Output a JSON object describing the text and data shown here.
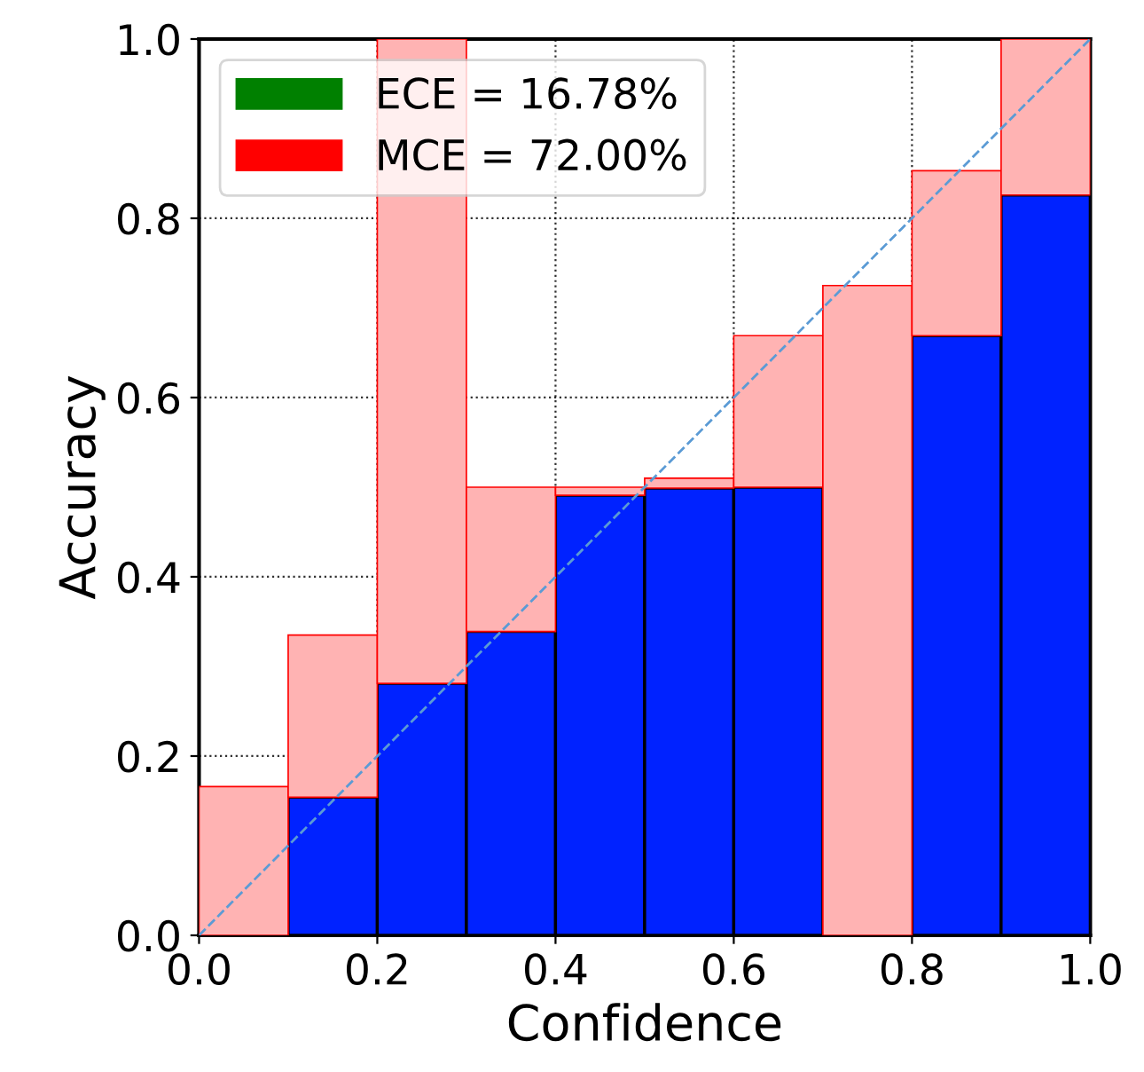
{
  "chart_data": {
    "type": "bar",
    "xlabel": "Confidence",
    "ylabel": "Accuracy",
    "x": [
      0.05,
      0.15,
      0.25,
      0.35,
      0.45,
      0.55,
      0.65,
      0.75,
      0.85,
      0.95
    ],
    "stacked": true,
    "series": [
      {
        "name": "ECE = 16.78%",
        "color": "#008000",
        "values": [
          null,
          null,
          null,
          null,
          null,
          null,
          null,
          null,
          null,
          null
        ]
      },
      {
        "name": "MCE = 72.00%",
        "color": "#ff0000",
        "values": [
          null,
          null,
          null,
          null,
          null,
          null,
          null,
          null,
          null,
          null
        ]
      },
      {
        "color": "#0022ff",
        "values": [
          null,
          0.154,
          0.281,
          0.339,
          0.491,
          0.499,
          0.5,
          null,
          0.669,
          0.826
        ]
      },
      {
        "color": "#ffb3b3",
        "values": [
          0.166,
          0.181,
          0.719,
          0.161,
          0.009,
          0.011,
          0.169,
          0.725,
          0.184,
          0.174
        ]
      },
      {
        "type": "line",
        "color": "#5b9bd5",
        "line_style": "dashed",
        "x": [
          0,
          1
        ],
        "values": [
          0,
          1
        ]
      }
    ],
    "xlim": [
      0,
      1
    ],
    "ylim": [
      0,
      1
    ],
    "xticks": [
      {
        "value": 0,
        "label": "0.0"
      },
      0.2,
      0.4,
      0.6,
      0.8,
      {
        "value": 1,
        "label": "1.0"
      }
    ],
    "yticks": [
      {
        "value": 0,
        "label": "0.0"
      },
      0.2,
      0.4,
      0.6,
      0.8,
      {
        "value": 1,
        "label": "1.0"
      }
    ],
    "grid": true,
    "legend": "top left"
  }
}
